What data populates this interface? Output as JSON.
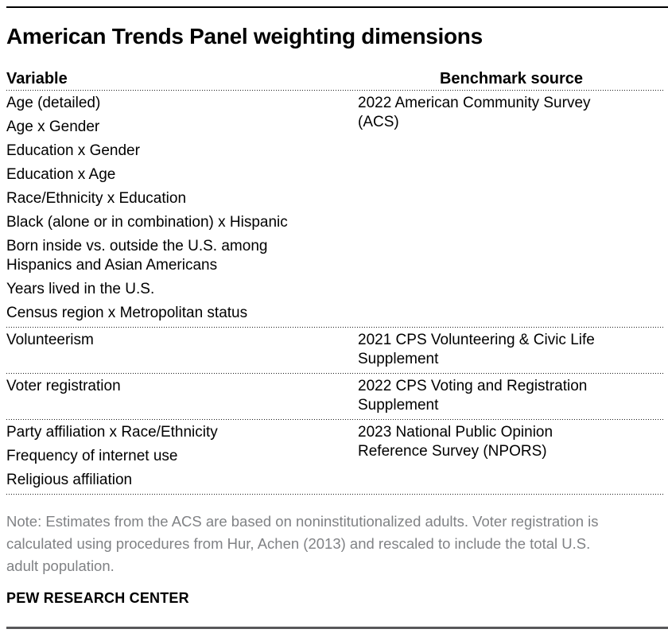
{
  "page": {
    "title": "American Trends Panel weighting dimensions",
    "note": "Note: Estimates from the ACS are based on noninstitutionalized adults. Voter registration is\ncalculated using procedures from Hur, Achen (2013) and rescaled to include the total U.S.\nadult population.",
    "source": "PEW RESEARCH CENTER"
  },
  "chart_data": {
    "type": "table",
    "title": "American Trends Panel weighting dimensions",
    "columns": [
      "Variable",
      "Benchmark source"
    ],
    "sections": [
      {
        "variables": [
          "Age (detailed)",
          "Age x Gender",
          "Education x Gender",
          "Education x Age",
          "Race/Ethnicity x Education",
          "Black (alone or in combination) x Hispanic",
          "Born inside vs. outside the U.S. among\nHispanics and Asian Americans",
          "Years lived in the U.S.",
          "Census region x Metropolitan status"
        ],
        "benchmark": "2022 American Community Survey\n(ACS)"
      },
      {
        "variables": [
          "Volunteerism"
        ],
        "benchmark": "2021 CPS Volunteering & Civic Life\nSupplement"
      },
      {
        "variables": [
          "Voter registration"
        ],
        "benchmark": "2022 CPS Voting and Registration\nSupplement"
      },
      {
        "variables": [
          "Party affiliation x Race/Ethnicity",
          "Frequency of internet use",
          "Religious affiliation"
        ],
        "benchmark": "2023 National Public Opinion\nReference Survey (NPORS)"
      }
    ]
  },
  "colors": {
    "text": "#000000",
    "note_text": "#808285",
    "rule_top": "#000000",
    "rule_bottom": "#58585a",
    "background": "#ffffff"
  }
}
